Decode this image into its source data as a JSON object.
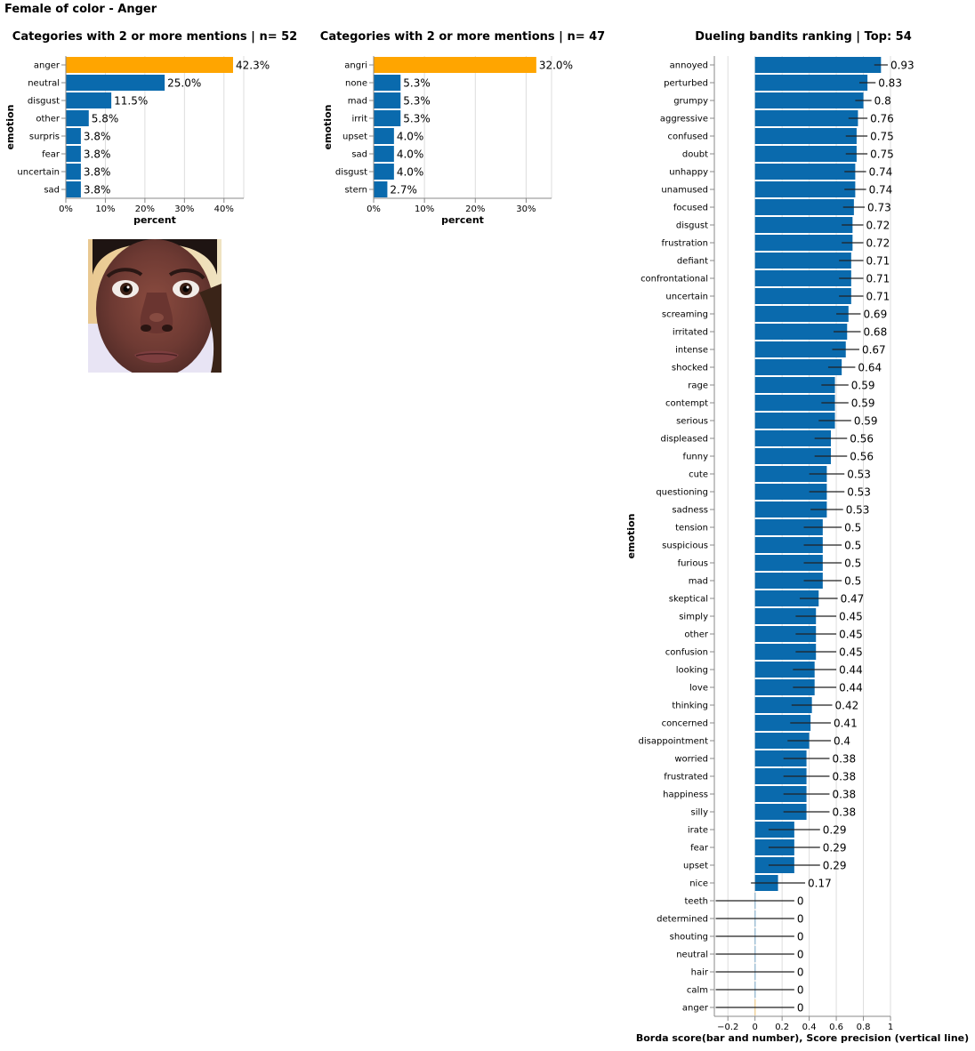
{
  "page_title": "Female of color - Anger",
  "colors": {
    "bar": "#0a6aad",
    "highlight": "#ffa500",
    "grid": "#dddddd",
    "axis": "#888888"
  },
  "chart_data": [
    {
      "type": "bar",
      "orientation": "horizontal",
      "title": "Categories with 2 or more mentions | n= 52",
      "xlabel": "percent",
      "ylabel": "emotion",
      "xlim": [
        0,
        45
      ],
      "xticks": [
        "0%",
        "10%",
        "20%",
        "30%",
        "40%"
      ],
      "xtick_values": [
        0,
        10,
        20,
        30,
        40
      ],
      "categories": [
        "anger",
        "neutral",
        "disgust",
        "other",
        "surpris",
        "fear",
        "uncertain",
        "sad"
      ],
      "values": [
        42.3,
        25.0,
        11.5,
        5.8,
        3.8,
        3.8,
        3.8,
        3.8
      ],
      "labels": [
        "42.3%",
        "25.0%",
        "11.5%",
        "5.8%",
        "3.8%",
        "3.8%",
        "3.8%",
        "3.8%"
      ],
      "highlight": [
        "anger"
      ]
    },
    {
      "type": "bar",
      "orientation": "horizontal",
      "title": "Categories with 2 or more mentions | n= 47",
      "xlabel": "percent",
      "ylabel": "emotion",
      "xlim": [
        0,
        35
      ],
      "xticks": [
        "0%",
        "10%",
        "20%",
        "30%"
      ],
      "xtick_values": [
        0,
        10,
        20,
        30
      ],
      "categories": [
        "angri",
        "none",
        "mad",
        "irrit",
        "upset",
        "sad",
        "disgust",
        "stern"
      ],
      "values": [
        32.0,
        5.3,
        5.3,
        5.3,
        4.0,
        4.0,
        4.0,
        2.7
      ],
      "labels": [
        "32.0%",
        "5.3%",
        "5.3%",
        "5.3%",
        "4.0%",
        "4.0%",
        "4.0%",
        "2.7%"
      ],
      "highlight": [
        "angri"
      ]
    },
    {
      "type": "bar",
      "orientation": "horizontal",
      "title": "Dueling bandits ranking | Top: 54",
      "xlabel": "Borda score(bar and number), Score precision (vertical line)",
      "ylabel": "emotion",
      "xlim": [
        -0.3,
        1.0
      ],
      "xticks": [
        "−0.2",
        "0",
        "0.2",
        "0.4",
        "0.6",
        "0.8",
        "1"
      ],
      "xtick_values": [
        -0.2,
        0,
        0.2,
        0.4,
        0.6,
        0.8,
        1.0
      ],
      "categories": [
        "annoyed",
        "perturbed",
        "grumpy",
        "aggressive",
        "confused",
        "doubt",
        "unhappy",
        "unamused",
        "focused",
        "disgust",
        "frustration",
        "defiant",
        "confrontational",
        "uncertain",
        "screaming",
        "irritated",
        "intense",
        "shocked",
        "rage",
        "contempt",
        "serious",
        "displeased",
        "funny",
        "cute",
        "questioning",
        "sadness",
        "tension",
        "suspicious",
        "furious",
        "mad",
        "skeptical",
        "simply",
        "other",
        "confusion",
        "looking",
        "love",
        "thinking",
        "concerned",
        "disappointment",
        "worried",
        "frustrated",
        "happiness",
        "silly",
        "irate",
        "fear",
        "upset",
        "nice",
        "teeth",
        "determined",
        "shouting",
        "neutral",
        "hair",
        "calm",
        "anger"
      ],
      "values": [
        0.93,
        0.83,
        0.8,
        0.76,
        0.75,
        0.75,
        0.74,
        0.74,
        0.73,
        0.72,
        0.72,
        0.71,
        0.71,
        0.71,
        0.69,
        0.68,
        0.67,
        0.64,
        0.59,
        0.59,
        0.59,
        0.56,
        0.56,
        0.53,
        0.53,
        0.53,
        0.5,
        0.5,
        0.5,
        0.5,
        0.47,
        0.45,
        0.45,
        0.45,
        0.44,
        0.44,
        0.42,
        0.41,
        0.4,
        0.38,
        0.38,
        0.38,
        0.38,
        0.29,
        0.29,
        0.29,
        0.17,
        0,
        0,
        0,
        0,
        0,
        0,
        0
      ],
      "labels": [
        "0.93",
        "0.83",
        "0.8",
        "0.76",
        "0.75",
        "0.75",
        "0.74",
        "0.74",
        "0.73",
        "0.72",
        "0.72",
        "0.71",
        "0.71",
        "0.71",
        "0.69",
        "0.68",
        "0.67",
        "0.64",
        "0.59",
        "0.59",
        "0.59",
        "0.56",
        "0.56",
        "0.53",
        "0.53",
        "0.53",
        "0.5",
        "0.5",
        "0.5",
        "0.5",
        "0.47",
        "0.45",
        "0.45",
        "0.45",
        "0.44",
        "0.44",
        "0.42",
        "0.41",
        "0.4",
        "0.38",
        "0.38",
        "0.38",
        "0.38",
        "0.29",
        "0.29",
        "0.29",
        "0.17",
        "0",
        "0",
        "0",
        "0",
        "0",
        "0",
        "0"
      ],
      "precision": [
        0.05,
        0.06,
        0.06,
        0.07,
        0.08,
        0.08,
        0.08,
        0.08,
        0.08,
        0.08,
        0.08,
        0.09,
        0.09,
        0.09,
        0.09,
        0.1,
        0.1,
        0.1,
        0.1,
        0.1,
        0.12,
        0.12,
        0.12,
        0.13,
        0.13,
        0.12,
        0.14,
        0.14,
        0.14,
        0.14,
        0.14,
        0.15,
        0.15,
        0.15,
        0.16,
        0.16,
        0.15,
        0.15,
        0.16,
        0.17,
        0.17,
        0.17,
        0.17,
        0.19,
        0.19,
        0.19,
        0.2,
        0.29,
        0.29,
        0.29,
        0.29,
        0.29,
        0.29,
        0.29
      ],
      "highlight": [
        "anger"
      ]
    }
  ],
  "photo": {
    "subject": "face-photo"
  }
}
